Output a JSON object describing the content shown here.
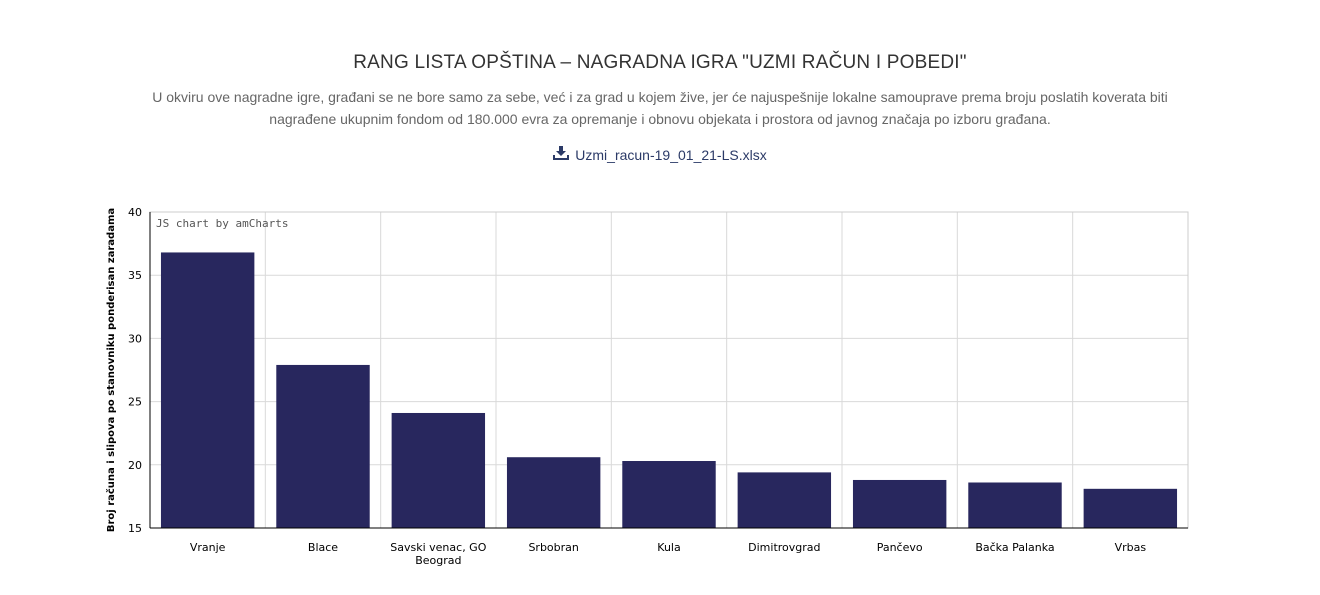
{
  "header": {
    "title": "RANG LISTA OPŠTINA – NAGRADNA IGRA \"UZMI RAČUN I POBEDI\"",
    "description_line1": "U okviru ove nagradne igre, građani se ne bore samo za sebe, već i za grad u kojem žive, jer će najuspešnije lokalne samouprave prema broju poslatih koverata biti",
    "description_line2": "nagrađene ukupnim fondom od 180.000 evra za opremanje i obnovu objekata i prostora od javnog značaja po izboru građana.",
    "download_label": "Uzmi_racun-19_01_21-LS.xlsx",
    "download_icon": "download-icon"
  },
  "chart_data": {
    "type": "bar",
    "credit": "JS chart by amCharts",
    "categories": [
      "Vranje",
      "Blace",
      "Savski venac, GO Beograd",
      "Srbobran",
      "Kula",
      "Dimitrovgrad",
      "Pančevo",
      "Bačka Palanka",
      "Vrbas"
    ],
    "values": [
      36.8,
      27.9,
      24.1,
      20.6,
      20.3,
      19.4,
      18.8,
      18.6,
      18.1
    ],
    "ylabel": "Broj računa i slipova po stanovniku ponderisan zaradama",
    "xlabel": "",
    "ylim": [
      15,
      40
    ],
    "yticks": [
      15,
      20,
      25,
      30,
      35,
      40
    ],
    "grid": true,
    "bar_color": "#28275e"
  }
}
